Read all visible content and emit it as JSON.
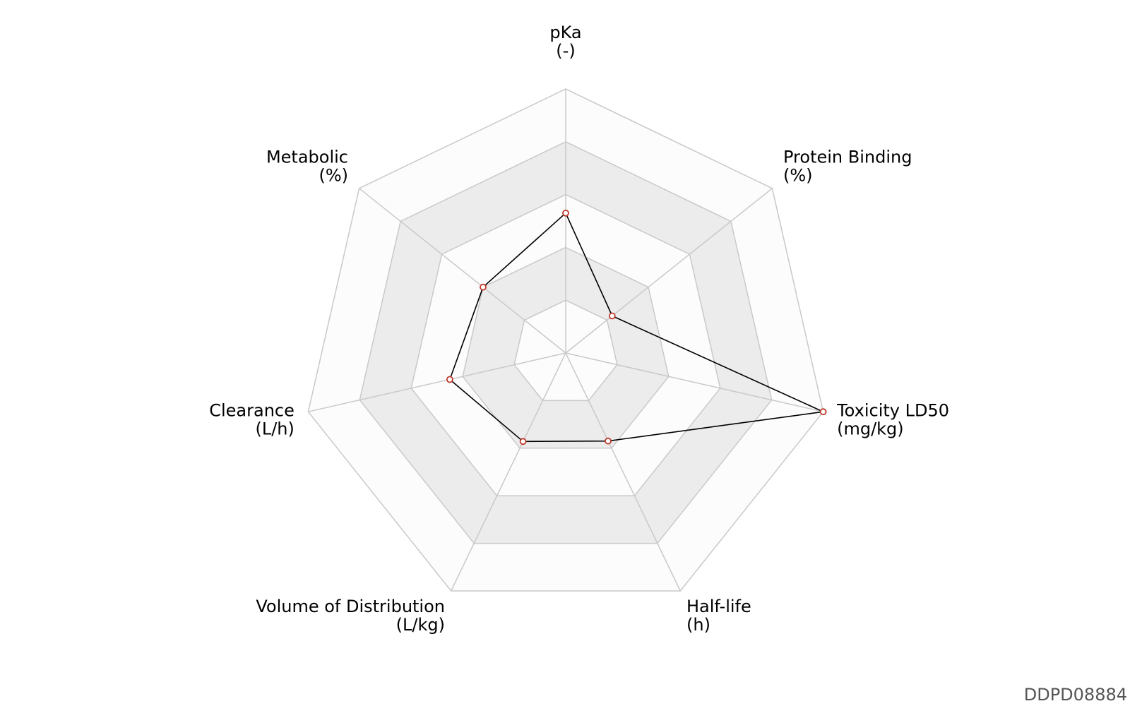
{
  "chart_data": {
    "type": "radar",
    "axes": [
      {
        "key": "pka",
        "name": "pKa",
        "unit": "(-)",
        "value": 0.53
      },
      {
        "key": "protein_binding",
        "name": "Protein Binding",
        "unit": "(%)",
        "value": 0.225
      },
      {
        "key": "toxicity",
        "name": "Toxicity LD50",
        "unit": "(mg/kg)",
        "value": 1.0
      },
      {
        "key": "half_life",
        "name": "Half-life",
        "unit": "(h)",
        "value": 0.37
      },
      {
        "key": "vd",
        "name": "Volume of Distribution",
        "unit": "(L/kg)",
        "value": 0.372
      },
      {
        "key": "clearance",
        "name": "Clearance",
        "unit": "(L/h)",
        "value": 0.45
      },
      {
        "key": "metabolic",
        "name": "Metabolic",
        "unit": "(%)",
        "value": 0.4
      }
    ],
    "rings": 5,
    "range": [
      0,
      1
    ],
    "grid": true,
    "colors": {
      "ring_fill_a": "#fcfcfc",
      "ring_fill_b": "#ececec",
      "grid_line": "#c9c9c9",
      "series_line": "#000000",
      "marker_edge": "#c0392b",
      "marker_fill": "#ffffff"
    }
  },
  "footer": {
    "id_text": "DDPD08884"
  }
}
